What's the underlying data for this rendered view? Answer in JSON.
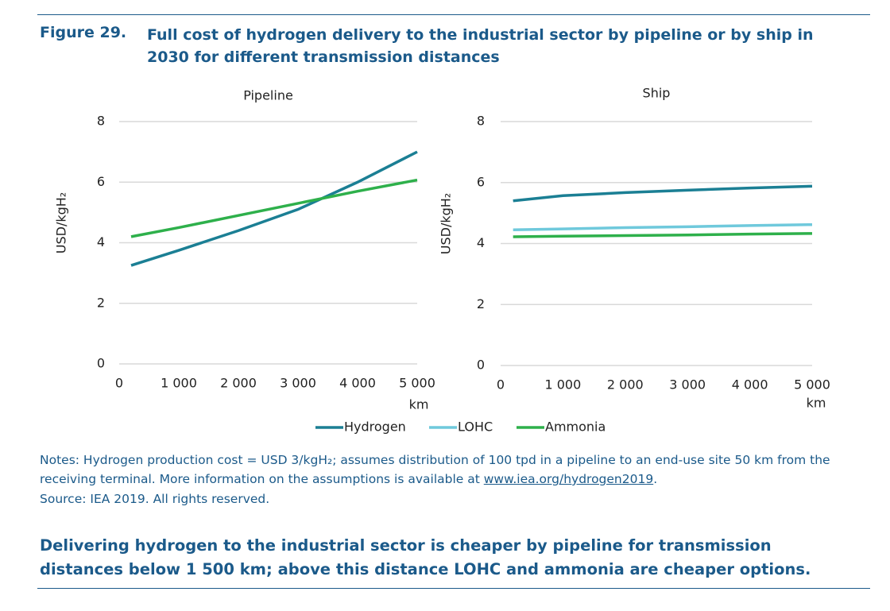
{
  "figure": {
    "label": "Figure 29.",
    "title": "Full cost of hydrogen delivery to the industrial sector by pipeline or by ship in 2030 for different transmission distances"
  },
  "chart_data": [
    {
      "type": "line",
      "title": "Pipeline",
      "y_label": "USD/kgH₂",
      "x_label": "km",
      "x": [
        200,
        1000,
        2000,
        3000,
        4000,
        5000
      ],
      "series": [
        {
          "name": "Hydrogen",
          "color": "#1b7f94",
          "values": [
            3.25,
            3.75,
            4.4,
            5.1,
            6.0,
            7.0
          ]
        },
        {
          "name": "Ammonia",
          "color": "#2eb04b",
          "values": [
            4.2,
            4.5,
            4.9,
            5.3,
            5.7,
            6.07
          ]
        }
      ],
      "xlim": [
        0,
        5000
      ],
      "xticks": [
        0,
        {
          "value": 1000,
          "label": "1 000"
        },
        {
          "value": 2000,
          "label": "2 000"
        },
        {
          "value": 3000,
          "label": "3 000"
        },
        {
          "value": 4000,
          "label": "4 000"
        },
        {
          "value": 5000,
          "label": "5 000"
        }
      ],
      "ylim": [
        0,
        8
      ],
      "yticks": [
        0,
        2,
        4,
        6,
        8
      ],
      "grid": true
    },
    {
      "type": "line",
      "title": "Ship",
      "y_label": "USD/kgH₂",
      "x_label": "km",
      "x": [
        200,
        1000,
        2000,
        3000,
        4000,
        5000
      ],
      "series": [
        {
          "name": "Hydrogen",
          "color": "#1b7f94",
          "values": [
            5.4,
            5.57,
            5.67,
            5.75,
            5.82,
            5.88
          ]
        },
        {
          "name": "LOHC",
          "color": "#6fc9dc",
          "values": [
            4.45,
            4.48,
            4.52,
            4.55,
            4.59,
            4.62
          ]
        },
        {
          "name": "Ammonia",
          "color": "#2eb04b",
          "values": [
            4.22,
            4.24,
            4.26,
            4.28,
            4.31,
            4.33
          ]
        }
      ],
      "xlim": [
        0,
        5000
      ],
      "xticks": [
        0,
        {
          "value": 1000,
          "label": "1 000"
        },
        {
          "value": 2000,
          "label": "2 000"
        },
        {
          "value": 3000,
          "label": "3 000"
        },
        {
          "value": 4000,
          "label": "4 000"
        },
        {
          "value": 5000,
          "label": "5 000"
        }
      ],
      "ylim": [
        0,
        8
      ],
      "yticks": [
        0,
        2,
        4,
        6,
        8
      ],
      "grid": true
    }
  ],
  "notes": [
    "Notes: Hydrogen production cost = USD 3/kgH₂; assumes distribution of 100 tpd in a pipeline to an end-use site 50 km from the receiving terminal. More information on the assumptions is available at ",
    "www.iea.org/hydrogen2019",
    "."
  ],
  "source": "Source: IEA 2019. All rights reserved.",
  "takeaway": "Delivering hydrogen to the industrial sector is cheaper by pipeline for transmission distances below 1 500 km; above this distance LOHC and ammonia are cheaper options."
}
